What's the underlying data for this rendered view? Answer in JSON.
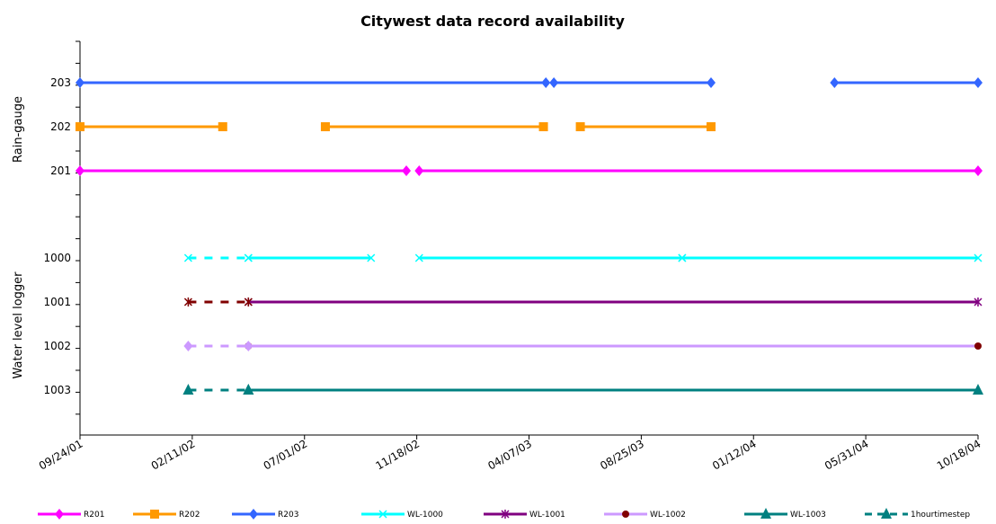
{
  "chart_data": {
    "type": "line",
    "title": "Citywest data record availability",
    "xlabel": "",
    "ylabel_groups": [
      {
        "label": "Rain-gauge",
        "categories": [
          "203",
          "202",
          "201"
        ]
      },
      {
        "label": "Water level logger",
        "categories": [
          "1000",
          "1001",
          "1002",
          "1003"
        ]
      }
    ],
    "xlim": [
      "2001-09-24",
      "2004-10-18"
    ],
    "x_tick_labels": [
      "09/24/01",
      "02/11/02",
      "07/01/02",
      "11/18/02",
      "04/07/03",
      "08/25/03",
      "01/12/04",
      "05/31/04",
      "10/18/04"
    ],
    "grid": false,
    "legend_position": "bottom",
    "series": [
      {
        "name": "R201",
        "color": "#ff00ff",
        "marker": "diamond",
        "category": "201",
        "segments": [
          [
            "2001-09-24",
            "2002-11-05"
          ],
          [
            "2002-11-21",
            "2004-10-18"
          ]
        ]
      },
      {
        "name": "R202",
        "color": "#ff9900",
        "marker": "square",
        "category": "202",
        "segments": [
          [
            "2001-09-24",
            "2002-03-21"
          ],
          [
            "2002-07-27",
            "2003-04-25"
          ],
          [
            "2003-06-10",
            "2003-11-20"
          ]
        ]
      },
      {
        "name": "R203",
        "color": "#3366ff",
        "marker": "diamond",
        "category": "203",
        "segments": [
          [
            "2001-09-24",
            "2003-04-28"
          ],
          [
            "2003-05-08",
            "2003-11-20"
          ],
          [
            "2004-04-22",
            "2004-10-18"
          ]
        ]
      },
      {
        "name": "WL-1000",
        "color": "#00ffff",
        "marker": "x",
        "category": "1000",
        "segments": [
          [
            "2002-04-22",
            "2002-09-22"
          ],
          [
            "2002-11-21",
            "2003-10-15"
          ],
          [
            "2003-10-15",
            "2004-10-18"
          ]
        ]
      },
      {
        "name": "WL-1001",
        "color": "#800080",
        "marker": "star",
        "category": "1001",
        "segments": [
          [
            "2002-04-22",
            "2004-10-18"
          ]
        ]
      },
      {
        "name": "WL-1002",
        "color": "#cc99ff",
        "marker": "circle",
        "category": "1002",
        "segments": [
          [
            "2002-04-22",
            "2004-10-18"
          ]
        ]
      },
      {
        "name": "WL-1003",
        "color": "#008080",
        "marker": "triangle",
        "category": "1003",
        "segments": [
          [
            "2002-04-22",
            "2004-10-18"
          ]
        ]
      },
      {
        "name": "1hourtimestep",
        "dashed": true,
        "marker": "triangle",
        "color": "#008080",
        "segments": [
          {
            "category": "1000",
            "color": "#00ffff",
            "marker": "x",
            "from": "2002-02-06",
            "to": "2002-04-22"
          },
          {
            "category": "1001",
            "color": "#800000",
            "marker": "star",
            "from": "2002-02-06",
            "to": "2002-04-22"
          },
          {
            "category": "1002",
            "color": "#cc99ff",
            "marker": "diamond",
            "from": "2002-02-06",
            "to": "2002-04-22"
          },
          {
            "category": "1003",
            "color": "#008080",
            "marker": "triangle",
            "from": "2002-02-06",
            "to": "2002-04-22"
          }
        ]
      }
    ]
  }
}
